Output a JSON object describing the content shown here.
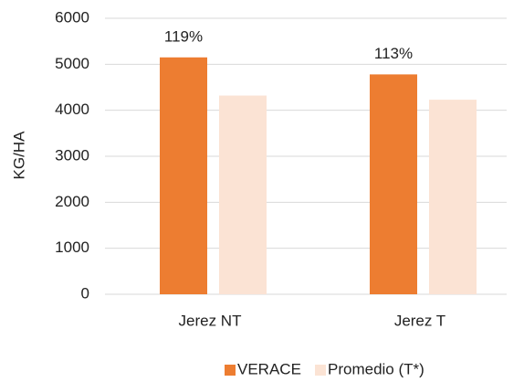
{
  "chart_data": {
    "type": "bar",
    "y_label": "KG/HA",
    "categories": [
      "Jerez NT",
      "Jerez T"
    ],
    "series": [
      {
        "name": "VERACE",
        "color": "#ed7d31",
        "values": [
          5150,
          4780
        ]
      },
      {
        "name": "Promedio (T*)",
        "color": "#fbe3d4",
        "values": [
          4320,
          4230
        ]
      }
    ],
    "annotations": [
      "119%",
      "113%"
    ],
    "ylim": [
      0,
      6000
    ],
    "yticks": [
      0,
      1000,
      2000,
      3000,
      4000,
      5000,
      6000
    ],
    "grid": true,
    "legend": "bottom"
  }
}
